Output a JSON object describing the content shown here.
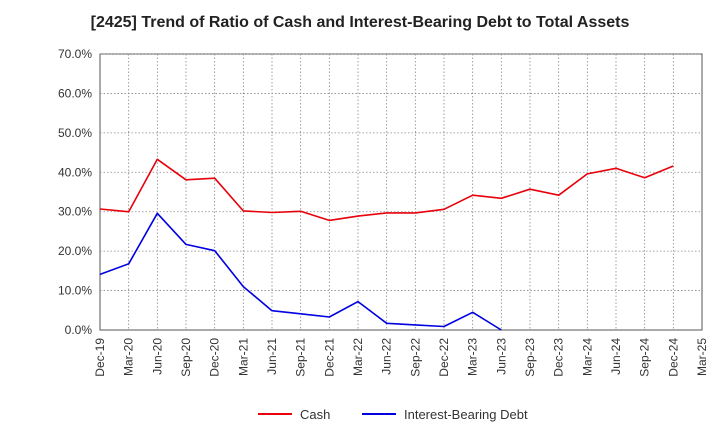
{
  "chart_data": {
    "type": "line",
    "title": "[2425]  Trend of Ratio of Cash and Interest-Bearing Debt to Total Assets",
    "xlabel": "",
    "ylabel": "",
    "ylim": [
      0,
      70
    ],
    "y_ticks": [
      "0.0%",
      "10.0%",
      "20.0%",
      "30.0%",
      "40.0%",
      "50.0%",
      "60.0%",
      "70.0%"
    ],
    "y_tick_values": [
      0,
      10,
      20,
      30,
      40,
      50,
      60,
      70
    ],
    "categories": [
      "Dec-19",
      "Mar-20",
      "Jun-20",
      "Sep-20",
      "Dec-20",
      "Mar-21",
      "Jun-21",
      "Sep-21",
      "Dec-21",
      "Mar-22",
      "Jun-22",
      "Sep-22",
      "Dec-22",
      "Mar-23",
      "Jun-23",
      "Sep-23",
      "Dec-23",
      "Mar-24",
      "Jun-24",
      "Sep-24",
      "Dec-24",
      "Mar-25"
    ],
    "grid": true,
    "legend_position": "bottom",
    "series": [
      {
        "name": "Cash",
        "color": "#e8000b",
        "values": [
          30.7,
          30.0,
          43.3,
          38.1,
          38.5,
          30.2,
          29.8,
          30.1,
          27.8,
          28.9,
          29.7,
          29.7,
          30.6,
          34.2,
          33.4,
          35.7,
          34.2,
          39.6,
          41.0,
          38.6,
          41.6,
          null
        ]
      },
      {
        "name": "Interest-Bearing Debt",
        "color": "#0000e0",
        "values": [
          14.1,
          16.8,
          29.6,
          21.7,
          20.1,
          11.0,
          4.9,
          4.1,
          3.3,
          7.2,
          1.7,
          1.3,
          0.9,
          4.5,
          0.0,
          null,
          null,
          null,
          null,
          null,
          null,
          null
        ]
      }
    ]
  }
}
